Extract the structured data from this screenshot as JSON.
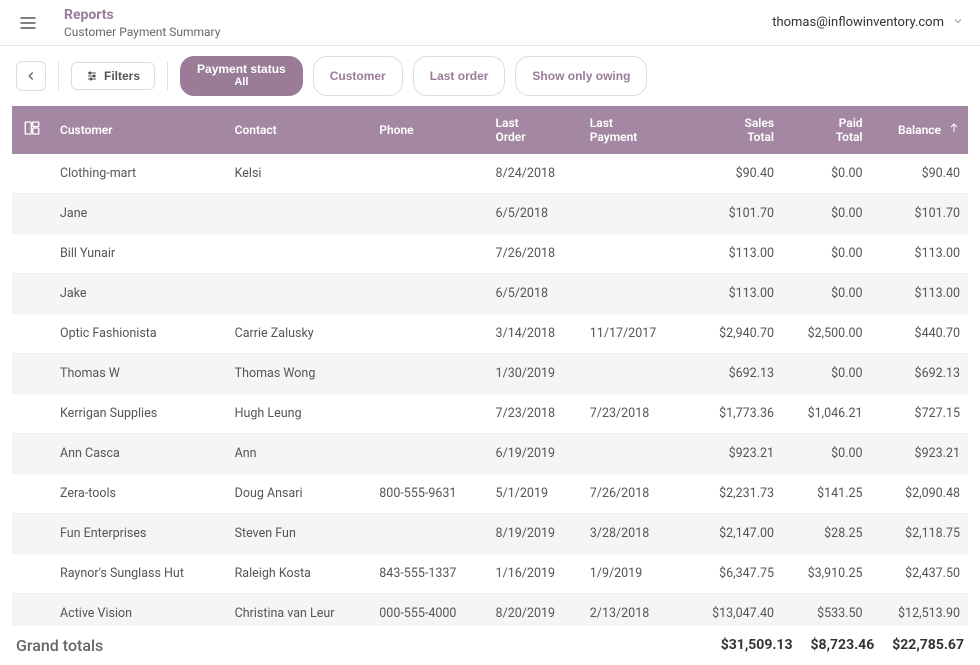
{
  "header": {
    "title": "Reports",
    "subtitle": "Customer Payment Summary",
    "account_email": "thomas@inflowinventory.com"
  },
  "toolbar": {
    "filters_label": "Filters",
    "chips": [
      {
        "label": "Payment status",
        "subline": "All",
        "active": true
      },
      {
        "label": "Customer",
        "active": false
      },
      {
        "label": "Last order",
        "active": false
      },
      {
        "label": "Show only owing",
        "active": false
      }
    ]
  },
  "table": {
    "columns": [
      {
        "key": "icon",
        "label": "",
        "type": "icon"
      },
      {
        "key": "customer",
        "label": "Customer",
        "type": "text"
      },
      {
        "key": "contact",
        "label": "Contact",
        "type": "text"
      },
      {
        "key": "phone",
        "label": "Phone",
        "type": "text"
      },
      {
        "key": "last_order",
        "label": "Last Order",
        "type": "text"
      },
      {
        "key": "last_payment",
        "label": "Last Payment",
        "type": "text"
      },
      {
        "key": "sales_total",
        "label": "Sales Total",
        "type": "num"
      },
      {
        "key": "paid_total",
        "label": "Paid Total",
        "type": "num"
      },
      {
        "key": "balance",
        "label": "Balance",
        "type": "num",
        "sorted": true
      }
    ],
    "rows": [
      {
        "customer": "Clothing-mart",
        "contact": "Kelsi",
        "phone": "",
        "last_order": "8/24/2018",
        "last_payment": "",
        "sales_total": "$90.40",
        "paid_total": "$0.00",
        "balance": "$90.40"
      },
      {
        "customer": "Jane",
        "contact": "",
        "phone": "",
        "last_order": "6/5/2018",
        "last_payment": "",
        "sales_total": "$101.70",
        "paid_total": "$0.00",
        "balance": "$101.70"
      },
      {
        "customer": "Bill Yunair",
        "contact": "",
        "phone": "",
        "last_order": "7/26/2018",
        "last_payment": "",
        "sales_total": "$113.00",
        "paid_total": "$0.00",
        "balance": "$113.00"
      },
      {
        "customer": "Jake",
        "contact": "",
        "phone": "",
        "last_order": "6/5/2018",
        "last_payment": "",
        "sales_total": "$113.00",
        "paid_total": "$0.00",
        "balance": "$113.00"
      },
      {
        "customer": "Optic Fashionista",
        "contact": "Carrie Zalusky",
        "phone": "",
        "last_order": "3/14/2018",
        "last_payment": "11/17/2017",
        "sales_total": "$2,940.70",
        "paid_total": "$2,500.00",
        "balance": "$440.70"
      },
      {
        "customer": "Thomas W",
        "contact": "Thomas Wong",
        "phone": "",
        "last_order": "1/30/2019",
        "last_payment": "",
        "sales_total": "$692.13",
        "paid_total": "$0.00",
        "balance": "$692.13"
      },
      {
        "customer": "Kerrigan Supplies",
        "contact": "Hugh Leung",
        "phone": "",
        "last_order": "7/23/2018",
        "last_payment": "7/23/2018",
        "sales_total": "$1,773.36",
        "paid_total": "$1,046.21",
        "balance": "$727.15"
      },
      {
        "customer": "Ann Casca",
        "contact": "Ann",
        "phone": "",
        "last_order": "6/19/2019",
        "last_payment": "",
        "sales_total": "$923.21",
        "paid_total": "$0.00",
        "balance": "$923.21"
      },
      {
        "customer": "Zera-tools",
        "contact": "Doug Ansari",
        "phone": "800-555-9631",
        "last_order": "5/1/2019",
        "last_payment": "7/26/2018",
        "sales_total": "$2,231.73",
        "paid_total": "$141.25",
        "balance": "$2,090.48"
      },
      {
        "customer": "Fun Enterprises",
        "contact": "Steven Fun",
        "phone": "",
        "last_order": "8/19/2019",
        "last_payment": "3/28/2018",
        "sales_total": "$2,147.00",
        "paid_total": "$28.25",
        "balance": "$2,118.75"
      },
      {
        "customer": "Raynor's Sunglass Hut",
        "contact": "Raleigh Kosta",
        "phone": "843-555-1337",
        "last_order": "1/16/2019",
        "last_payment": "1/9/2019",
        "sales_total": "$6,347.75",
        "paid_total": "$3,910.25",
        "balance": "$2,437.50"
      },
      {
        "customer": "Active Vision",
        "contact": "Christina van Leur",
        "phone": "000-555-4000",
        "last_order": "8/20/2019",
        "last_payment": "2/13/2018",
        "sales_total": "$13,047.40",
        "paid_total": "$533.50",
        "balance": "$12,513.90"
      }
    ]
  },
  "footer": {
    "label": "Grand totals",
    "sales_total": "$31,509.13",
    "paid_total": "$8,723.46",
    "balance": "$22,785.67"
  },
  "colors": {
    "header_purple": "#9a7c99",
    "table_header_bg": "#a488a3",
    "row_alt_bg": "#f5f5f5",
    "border": "#e5e5e5"
  }
}
